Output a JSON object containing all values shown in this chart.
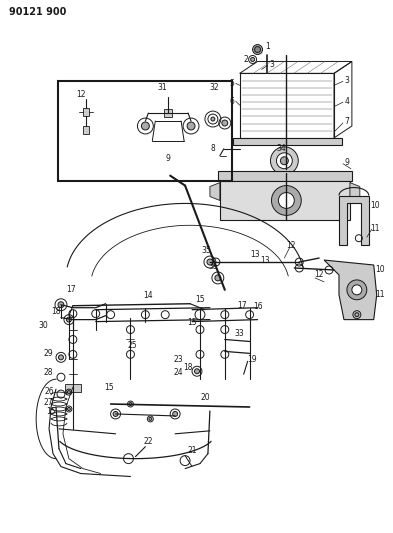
{
  "title": "90121 900",
  "bg_color": "#ffffff",
  "fg_color": "#1a1a1a",
  "fig_width": 3.93,
  "fig_height": 5.33,
  "dpi": 100,
  "gray1": "#888888",
  "gray2": "#aaaaaa",
  "gray3": "#cccccc",
  "gray4": "#dddddd"
}
